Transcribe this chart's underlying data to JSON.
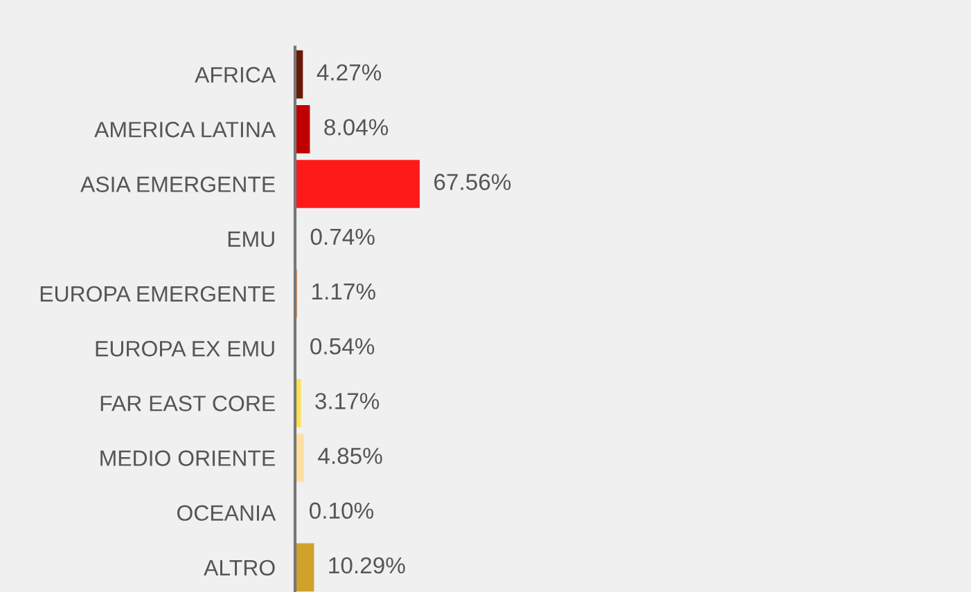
{
  "chart_data": {
    "type": "bar",
    "orientation": "horizontal",
    "categories": [
      "AFRICA",
      "AMERICA LATINA",
      "ASIA EMERGENTE",
      "EMU",
      "EUROPA EMERGENTE",
      "EUROPA EX EMU",
      "FAR EAST CORE",
      "MEDIO ORIENTE",
      "OCEANIA",
      "ALTRO"
    ],
    "values": [
      4.27,
      8.04,
      67.56,
      0.74,
      1.17,
      0.54,
      3.17,
      4.85,
      0.1,
      10.29
    ],
    "colors": [
      "#6b1a08",
      "#c00000",
      "#ff1a1a",
      "#e87a50",
      "#f4a460",
      "#f0c070",
      "#ffe050",
      "#fde0a0",
      "#e8b830",
      "#cfa22c"
    ],
    "value_labels": [
      "4.27%",
      "8.04%",
      "67.56%",
      "0.74%",
      "1.17%",
      "0.54%",
      "3.17%",
      "4.85%",
      "0.10%",
      "10.29%"
    ],
    "grid": false,
    "legend": false
  }
}
